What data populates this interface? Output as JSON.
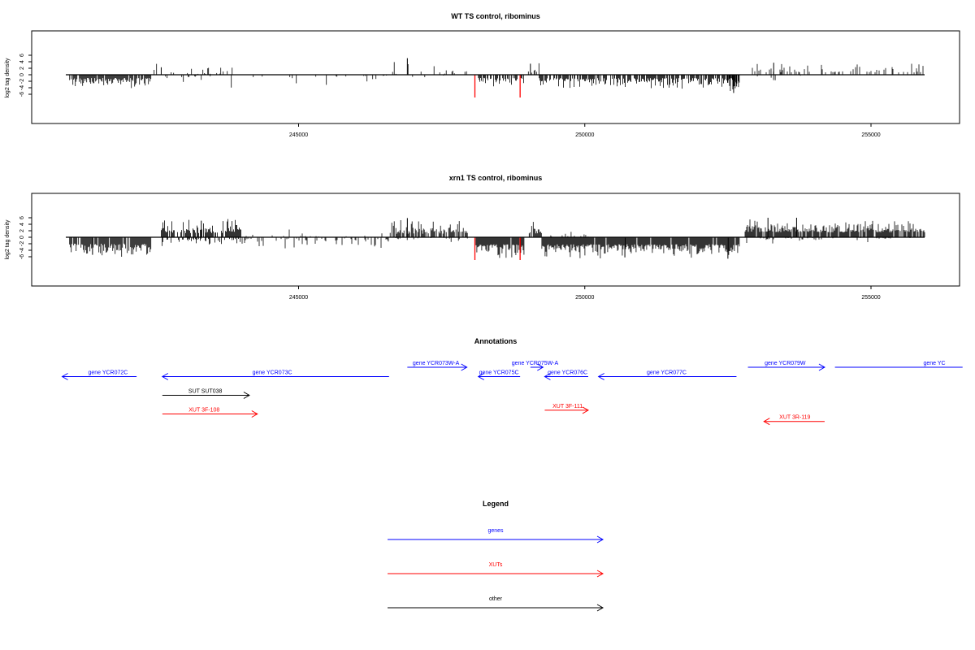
{
  "chart_data": [
    {
      "type": "bar",
      "title": "WT TS control, ribominus",
      "ylabel": "log2 tag density",
      "xlim": [
        240900,
        256300
      ],
      "ylim": [
        -7,
        7
      ],
      "yticks": [
        -6,
        -4,
        -2,
        0,
        2,
        4,
        6
      ],
      "xticks": [
        245000,
        250000,
        255000
      ],
      "highlight_x": [
        248080,
        248870
      ],
      "highlight_color": "#ff0000",
      "segments": [
        {
          "x0": 241000,
          "x1": 242420,
          "sign": -1,
          "mean": 1.5,
          "amp": 1.7,
          "density": 0.85
        },
        {
          "x0": 242420,
          "x1": 244000,
          "sign": 1,
          "mean": 0.8,
          "amp": 2.0,
          "density": 0.12
        },
        {
          "x0": 242420,
          "x1": 246600,
          "sign": -1,
          "mean": 0.7,
          "amp": 2.2,
          "density": 0.1
        },
        {
          "x0": 246600,
          "x1": 247950,
          "sign": 1,
          "mean": 1.0,
          "amp": 2.5,
          "density": 0.12
        },
        {
          "x0": 246750,
          "x1": 248300,
          "sign": -1,
          "mean": 0.6,
          "amp": 1.2,
          "density": 0.05
        },
        {
          "x0": 248150,
          "x1": 248950,
          "sign": -1,
          "mean": 1.4,
          "amp": 1.4,
          "density": 0.6
        },
        {
          "x0": 249000,
          "x1": 249200,
          "sign": 1,
          "mean": 1.2,
          "amp": 2.0,
          "density": 0.3
        },
        {
          "x0": 249200,
          "x1": 252700,
          "sign": -1,
          "mean": 1.6,
          "amp": 1.8,
          "density": 0.75
        },
        {
          "x0": 252500,
          "x1": 252700,
          "sign": -1,
          "mean": 3.0,
          "amp": 2.6,
          "density": 0.6
        },
        {
          "x0": 252800,
          "x1": 255950,
          "sign": 1,
          "mean": 1.2,
          "amp": 1.6,
          "density": 0.28
        },
        {
          "x0": 253000,
          "x1": 253800,
          "sign": -1,
          "mean": 0.6,
          "amp": 1.2,
          "density": 0.08
        }
      ],
      "peaks": [
        [
          246900,
          5.1
        ],
        [
          249050,
          3.4
        ],
        [
          252600,
          -5.6
        ],
        [
          253300,
          3.7
        ],
        [
          242600,
          2.3
        ]
      ]
    },
    {
      "type": "bar",
      "title": "xrn1 TS control, ribominus",
      "ylabel": "log2 tag density",
      "xlim": [
        240900,
        256300
      ],
      "ylim": [
        -7,
        7
      ],
      "yticks": [
        -6,
        -4,
        -2,
        0,
        2,
        4,
        6
      ],
      "xticks": [
        245000,
        250000,
        255000
      ],
      "highlight_x": [
        248080,
        248870
      ],
      "highlight_color": "#ff0000",
      "segments": [
        {
          "x0": 241000,
          "x1": 242420,
          "sign": -1,
          "mean": 2.6,
          "amp": 2.2,
          "density": 0.95
        },
        {
          "x0": 242600,
          "x1": 244000,
          "sign": 1,
          "mean": 2.0,
          "amp": 2.4,
          "density": 0.85
        },
        {
          "x0": 242600,
          "x1": 244000,
          "sign": -1,
          "mean": 0.9,
          "amp": 1.6,
          "density": 0.45
        },
        {
          "x0": 244000,
          "x1": 246600,
          "sign": 1,
          "mean": 0.6,
          "amp": 1.4,
          "density": 0.1
        },
        {
          "x0": 244000,
          "x1": 246600,
          "sign": -1,
          "mean": 0.9,
          "amp": 1.8,
          "density": 0.25
        },
        {
          "x0": 246600,
          "x1": 247950,
          "sign": 1,
          "mean": 1.8,
          "amp": 2.4,
          "density": 0.75
        },
        {
          "x0": 246600,
          "x1": 247950,
          "sign": -1,
          "mean": 0.5,
          "amp": 1.0,
          "density": 0.15
        },
        {
          "x0": 248100,
          "x1": 248950,
          "sign": -1,
          "mean": 3.0,
          "amp": 2.6,
          "density": 0.95
        },
        {
          "x0": 249000,
          "x1": 249250,
          "sign": 1,
          "mean": 1.8,
          "amp": 2.0,
          "density": 0.7
        },
        {
          "x0": 249250,
          "x1": 252700,
          "sign": -1,
          "mean": 2.9,
          "amp": 2.4,
          "density": 0.95
        },
        {
          "x0": 249250,
          "x1": 250200,
          "sign": 1,
          "mean": 0.4,
          "amp": 0.8,
          "density": 0.15
        },
        {
          "x0": 252800,
          "x1": 255950,
          "sign": 1,
          "mean": 2.2,
          "amp": 2.2,
          "density": 0.9
        },
        {
          "x0": 252800,
          "x1": 255950,
          "sign": -1,
          "mean": 0.4,
          "amp": 0.9,
          "density": 0.1
        }
      ],
      "peaks": [
        [
          246900,
          5.9
        ],
        [
          243300,
          5.1
        ],
        [
          253200,
          6.0
        ],
        [
          253700,
          6.0
        ],
        [
          252500,
          -6.6
        ],
        [
          250700,
          -6.2
        ],
        [
          241400,
          -5.4
        ]
      ]
    }
  ],
  "annotations": {
    "title": "Annotations",
    "items": [
      {
        "label": "gene YCR072C",
        "color": "#0000ff",
        "from": 242170,
        "to": 240870,
        "row": 1,
        "label_x": 241670
      },
      {
        "label": "gene YCR073C",
        "color": "#0000ff",
        "from": 246580,
        "to": 242620,
        "row": 1,
        "label_x": 244540
      },
      {
        "label": "gene YCR073W-A",
        "color": "#0000ff",
        "from": 246900,
        "to": 247940,
        "row": 0,
        "label_x": 247400
      },
      {
        "label": "gene YCR075C",
        "color": "#0000ff",
        "from": 248870,
        "to": 248140,
        "row": 1,
        "label_x": 248500
      },
      {
        "label": "gene YCR075W-A",
        "color": "#0000ff",
        "from": 249050,
        "to": 249270,
        "row": 0,
        "label_x": 249130
      },
      {
        "label": "gene YCR076C",
        "color": "#0000ff",
        "from": 250060,
        "to": 249300,
        "row": 1,
        "label_x": 249700
      },
      {
        "label": "gene YCR077C",
        "color": "#0000ff",
        "from": 252650,
        "to": 250240,
        "row": 1,
        "label_x": 251430
      },
      {
        "label": "gene YCR079W",
        "color": "#0000ff",
        "from": 252850,
        "to": 254190,
        "row": 0,
        "label_x": 253500
      },
      {
        "label": "gene YC",
        "color": "#0000ff",
        "from": 254370,
        "to": 256600,
        "row": 0,
        "label_x": 256300,
        "noarrow": true
      },
      {
        "label": "SUT SUT038",
        "color": "#000000",
        "from": 242620,
        "to": 244140,
        "row": 3,
        "label_x": 243370
      },
      {
        "label": "XUT 3F-108",
        "color": "#ff0000",
        "from": 242620,
        "to": 244280,
        "row": 5,
        "label_x": 243350
      },
      {
        "label": "XUT 3F-111",
        "color": "#ff0000",
        "from": 249300,
        "to": 250060,
        "row": 4.6,
        "label_x": 249700
      },
      {
        "label": "XUT 3R-119",
        "color": "#ff0000",
        "from": 254190,
        "to": 253130,
        "row": 5.8,
        "label_x": 253670
      }
    ]
  },
  "legend": {
    "title": "Legend",
    "items": [
      {
        "label": "genes",
        "color": "#0000ff"
      },
      {
        "label": "XUTs",
        "color": "#ff0000"
      },
      {
        "label": "other",
        "color": "#000000"
      }
    ]
  }
}
